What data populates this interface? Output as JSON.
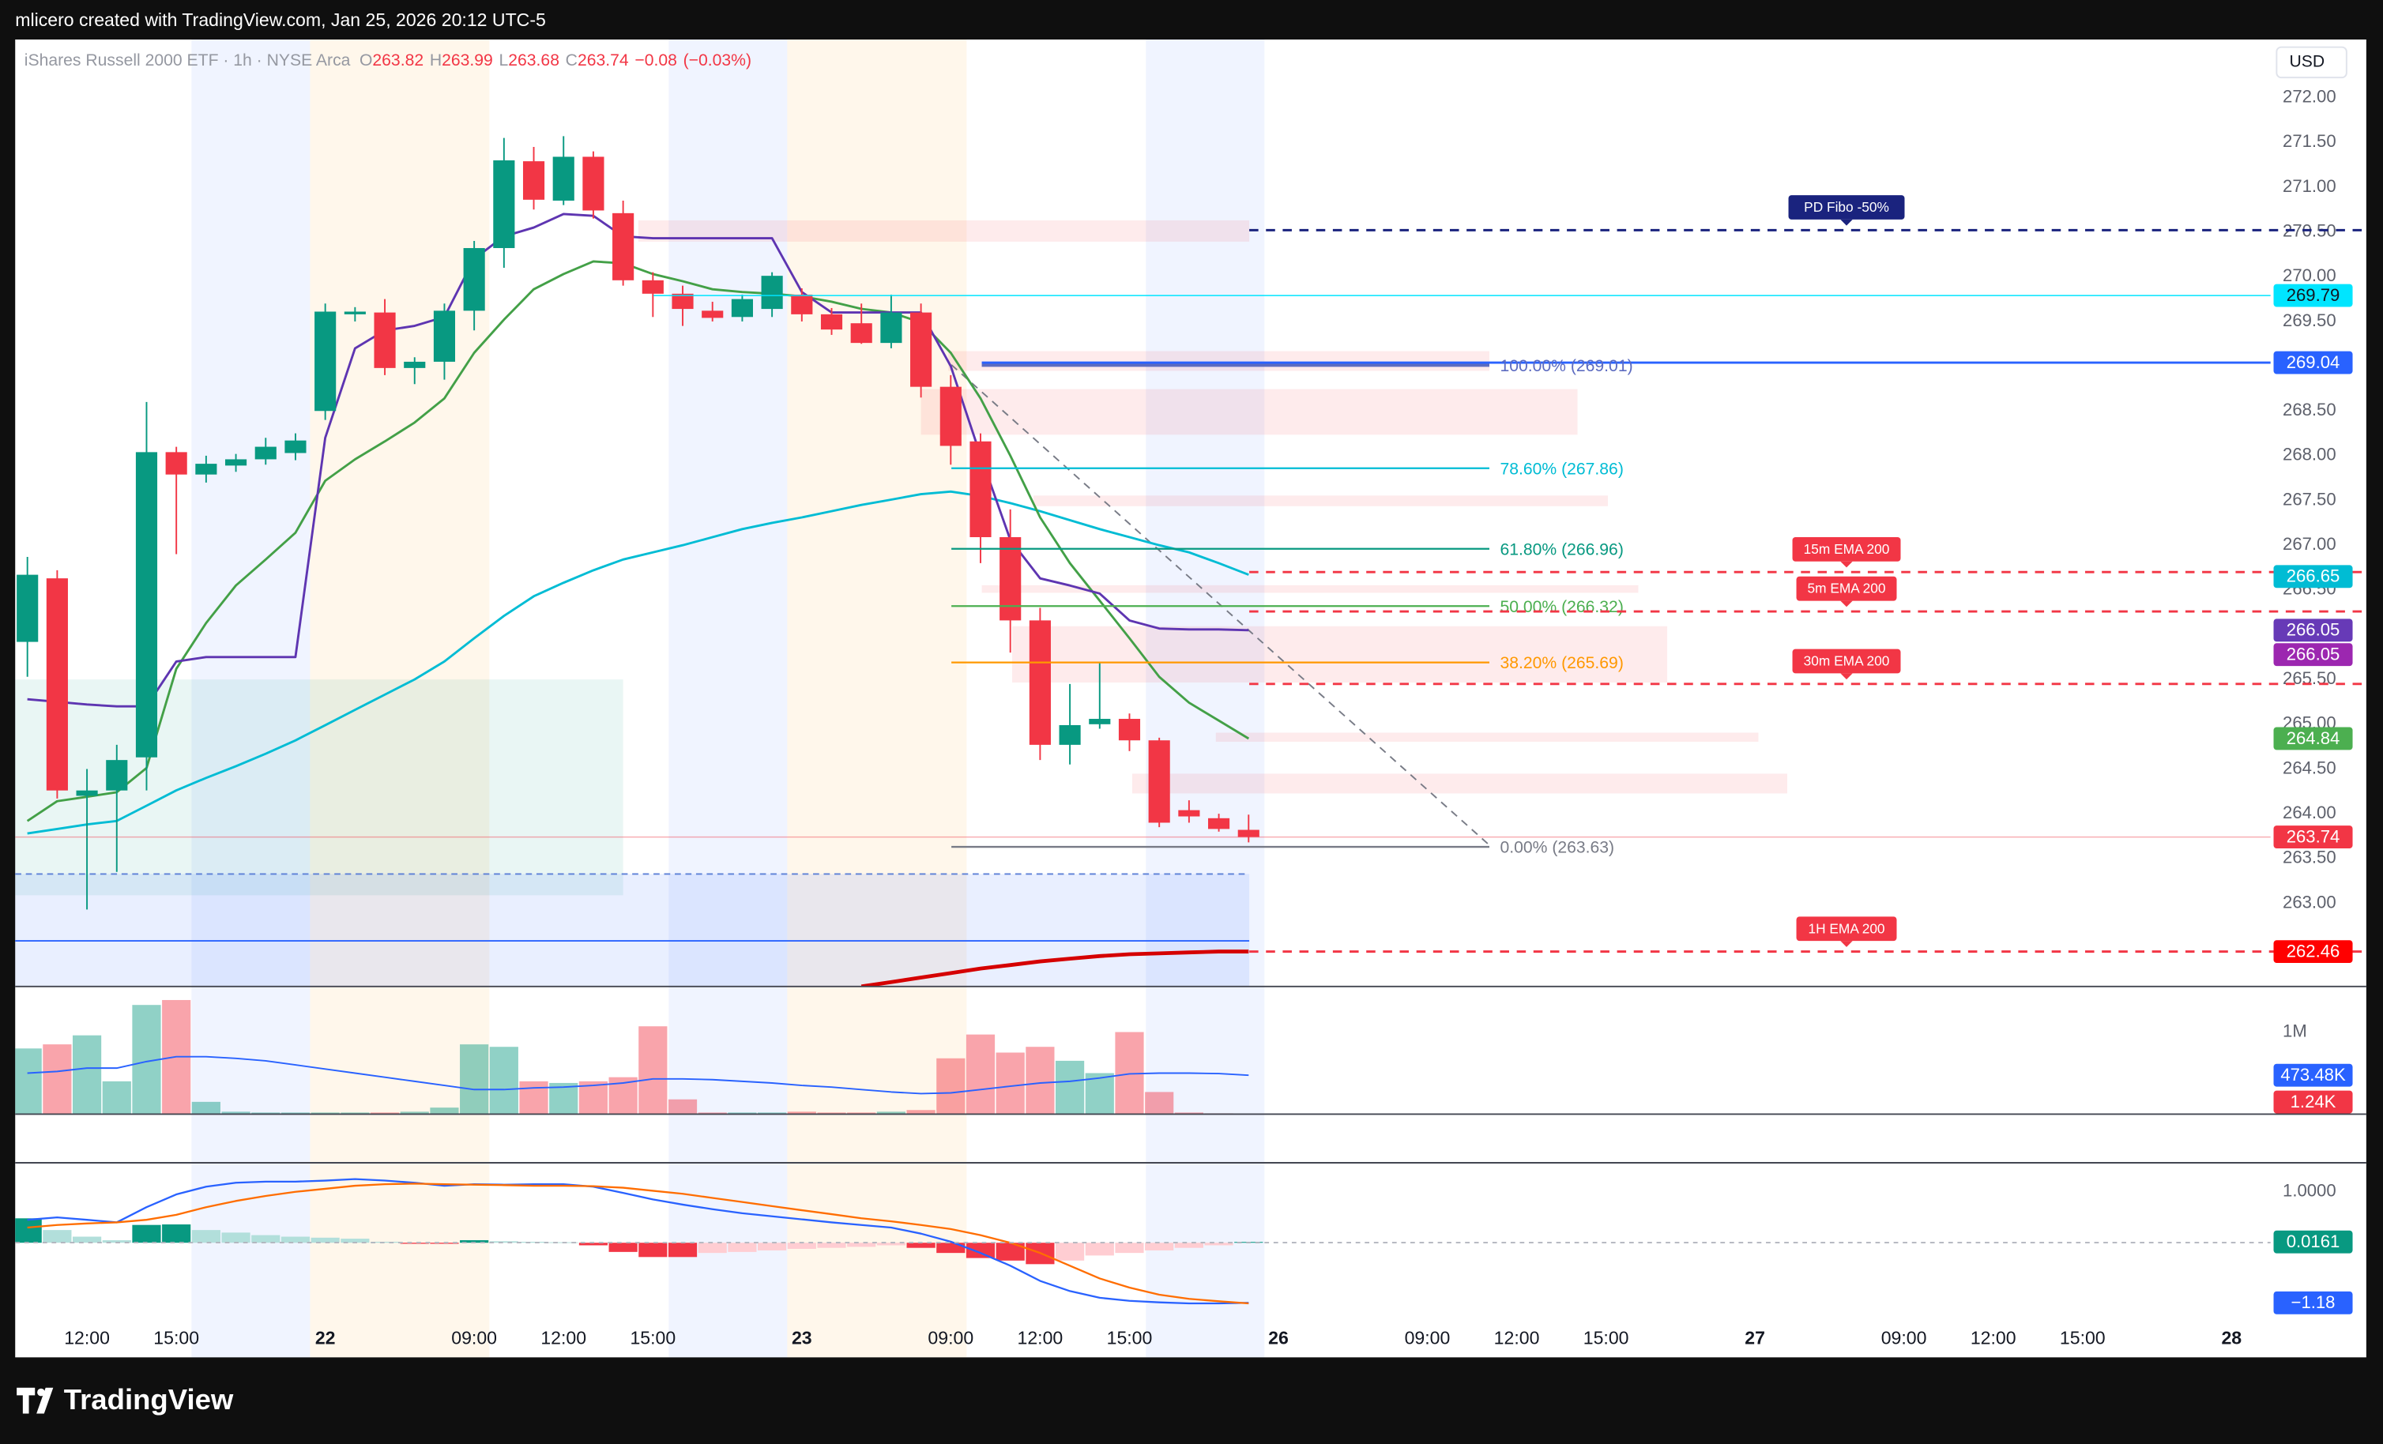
{
  "header": {
    "credit": "mlicero created with TradingView.com, Jan 25, 2026 20:12 UTC-5",
    "logo": "TradingView"
  },
  "chart_data": [
    {
      "type": "candlestick",
      "title": "iShares Russell 2000 ETF · 1h · NYSE Arca",
      "currency": "USD",
      "legend": [
        {
          "key": "O",
          "value": 263.82
        },
        {
          "key": "H",
          "value": 263.99
        },
        {
          "key": "L",
          "value": 263.68
        },
        {
          "key": "C",
          "value": 263.74
        }
      ],
      "change": {
        "value": -0.08,
        "label": "−0.08"
      },
      "change_pct": {
        "value": -0.03,
        "label": "(−0.03%)"
      },
      "xlim": [
        -0.41,
        75.31
      ],
      "xticks": [
        {
          "value": 2,
          "label": "12:00"
        },
        {
          "value": 5,
          "label": "15:00"
        },
        {
          "value": 10,
          "label": "22"
        },
        {
          "value": 15,
          "label": "09:00"
        },
        {
          "value": 18,
          "label": "12:00"
        },
        {
          "value": 21,
          "label": "15:00"
        },
        {
          "value": 26,
          "label": "23"
        },
        {
          "value": 31,
          "label": "09:00"
        },
        {
          "value": 34,
          "label": "12:00"
        },
        {
          "value": 37,
          "label": "15:00"
        },
        {
          "value": 42,
          "label": "26"
        },
        {
          "value": 47,
          "label": "09:00"
        },
        {
          "value": 50,
          "label": "12:00"
        },
        {
          "value": 53,
          "label": "15:00"
        },
        {
          "value": 58,
          "label": "27"
        },
        {
          "value": 63,
          "label": "09:00"
        },
        {
          "value": 66,
          "label": "12:00"
        },
        {
          "value": 69,
          "label": "15:00"
        },
        {
          "value": 74,
          "label": "28"
        }
      ],
      "ylim": [
        262.07,
        272.65
      ],
      "yticks": [
        {
          "value": 263,
          "label": "263.00"
        },
        {
          "value": 263.5,
          "label": "263.50"
        },
        {
          "value": 264,
          "label": "264.00"
        },
        {
          "value": 264.5,
          "label": "264.50"
        },
        {
          "value": 265,
          "label": "265.00"
        },
        {
          "value": 265.5,
          "label": "265.50"
        },
        {
          "value": 266,
          "label": "266.00"
        },
        {
          "value": 266.5,
          "label": "266.50"
        },
        {
          "value": 267,
          "label": "267.00"
        },
        {
          "value": 267.5,
          "label": "267.50"
        },
        {
          "value": 268,
          "label": "268.00"
        },
        {
          "value": 268.5,
          "label": "268.50"
        },
        {
          "value": 269,
          "label": "269.00"
        },
        {
          "value": 269.5,
          "label": "269.50"
        },
        {
          "value": 270,
          "label": "270.00"
        },
        {
          "value": 270.5,
          "label": "270.50"
        },
        {
          "value": 271,
          "label": "271.00"
        },
        {
          "value": 271.5,
          "label": "271.50"
        },
        {
          "value": 272,
          "label": "272.00"
        }
      ],
      "open": [
        265.92,
        266.63,
        264.2,
        264.26,
        264.63,
        268.04,
        267.79,
        267.89,
        267.96,
        268.03,
        268.5,
        269.58,
        269.6,
        268.98,
        269.05,
        269.62,
        270.32,
        271.29,
        270.85,
        271.34,
        270.71,
        269.96,
        269.81,
        269.62,
        269.55,
        269.64,
        269.8,
        269.58,
        269.48,
        269.26,
        269.6,
        268.77,
        268.16,
        267.09,
        266.16,
        264.77,
        265.0,
        265.06,
        264.82,
        264.04,
        263.95,
        263.82
      ],
      "high": [
        266.87,
        266.72,
        264.5,
        264.77,
        268.6,
        268.1,
        268.0,
        268.02,
        268.2,
        268.25,
        269.7,
        269.66,
        269.75,
        269.1,
        269.7,
        270.4,
        271.55,
        271.45,
        271.57,
        271.4,
        270.85,
        270.05,
        269.9,
        269.72,
        269.8,
        270.05,
        269.87,
        269.65,
        269.7,
        269.8,
        269.7,
        268.9,
        268.25,
        267.4,
        266.3,
        265.45,
        265.7,
        265.12,
        264.85,
        264.15,
        264.0,
        263.99
      ],
      "low": [
        265.53,
        264.17,
        262.93,
        263.35,
        264.26,
        266.9,
        267.7,
        267.82,
        267.9,
        267.95,
        268.4,
        269.5,
        268.9,
        268.8,
        268.85,
        269.4,
        270.1,
        270.75,
        270.8,
        270.65,
        269.9,
        269.55,
        269.45,
        269.5,
        269.5,
        269.55,
        269.5,
        269.35,
        269.25,
        269.2,
        268.65,
        267.9,
        266.8,
        265.8,
        264.6,
        264.55,
        264.95,
        264.7,
        263.85,
        263.9,
        263.8,
        263.68
      ],
      "close": [
        266.67,
        264.26,
        264.26,
        264.6,
        268.04,
        267.79,
        267.91,
        267.96,
        268.1,
        268.17,
        269.61,
        269.61,
        268.98,
        269.05,
        269.62,
        270.32,
        271.3,
        270.86,
        271.34,
        270.74,
        269.96,
        269.81,
        269.64,
        269.54,
        269.75,
        270.01,
        269.58,
        269.41,
        269.26,
        269.6,
        268.77,
        268.11,
        267.09,
        266.16,
        264.77,
        264.99,
        265.06,
        264.82,
        263.9,
        263.97,
        263.83,
        263.74
      ],
      "lines": [
        {
          "color": "#00bcd4",
          "values": [
            263.78,
            263.83,
            263.88,
            263.92,
            264.09,
            264.26,
            264.4,
            264.53,
            264.67,
            264.82,
            264.99,
            265.16,
            265.33,
            265.5,
            265.7,
            265.96,
            266.21,
            266.43,
            266.58,
            266.72,
            266.84,
            266.92,
            267.0,
            267.09,
            267.18,
            267.25,
            267.31,
            267.38,
            267.45,
            267.51,
            267.57,
            267.6,
            267.55,
            267.47,
            267.38,
            267.28,
            267.18,
            267.09,
            267.0,
            266.92,
            266.8,
            266.67
          ]
        },
        {
          "color": "#43a047",
          "values": [
            263.92,
            264.14,
            264.19,
            264.24,
            264.51,
            265.62,
            266.13,
            266.55,
            266.84,
            267.14,
            267.72,
            267.96,
            268.16,
            268.37,
            268.64,
            269.15,
            269.52,
            269.86,
            270.03,
            270.17,
            270.15,
            270.03,
            269.95,
            269.86,
            269.83,
            269.81,
            269.78,
            269.72,
            269.64,
            269.6,
            269.49,
            269.15,
            268.64,
            268.0,
            267.31,
            266.8,
            266.38,
            265.96,
            265.53,
            265.24,
            265.04,
            264.84
          ]
        },
        {
          "color": "#5e35b1",
          "values": [
            265.28,
            265.25,
            265.22,
            265.2,
            265.2,
            265.7,
            265.75,
            265.75,
            265.75,
            265.75,
            268.2,
            269.2,
            269.4,
            269.45,
            269.55,
            270.2,
            270.45,
            270.55,
            270.7,
            270.68,
            270.45,
            270.43,
            270.43,
            270.43,
            270.43,
            270.43,
            269.83,
            269.6,
            269.6,
            269.6,
            269.6,
            269.0,
            268.0,
            267.06,
            266.63,
            266.55,
            266.46,
            266.16,
            266.07,
            266.06,
            266.06,
            266.05
          ]
        },
        {
          "color": "#d50000",
          "values": [
            null,
            null,
            null,
            null,
            null,
            null,
            null,
            null,
            null,
            null,
            null,
            null,
            null,
            null,
            null,
            null,
            null,
            null,
            null,
            null,
            null,
            null,
            null,
            null,
            null,
            null,
            null,
            null,
            262.07,
            262.12,
            262.17,
            262.22,
            262.27,
            262.31,
            262.35,
            262.38,
            262.41,
            262.43,
            262.44,
            262.45,
            262.46,
            262.46
          ]
        }
      ],
      "fib": [
        {
          "label": "100.00% (269.01)",
          "value": 269.01,
          "color": "#5c6bc0"
        },
        {
          "label": "78.60% (267.86)",
          "value": 267.86,
          "color": "#00bcd4"
        },
        {
          "label": "61.80% (266.96)",
          "value": 266.96,
          "color": "#089981"
        },
        {
          "label": "50.00% (266.32)",
          "value": 266.32,
          "color": "#4caf50"
        },
        {
          "label": "38.20% (265.69)",
          "value": 265.69,
          "color": "#ff9800"
        },
        {
          "label": "0.00% (263.63)",
          "value": 263.63,
          "color": "#787b86"
        }
      ],
      "levels": [
        {
          "label": "PD Fibo -50%",
          "value": 270.52,
          "color": "#1a237e"
        },
        {
          "label": "15m EMA 200",
          "value": 266.7,
          "color": "#f23645"
        },
        {
          "label": "5m EMA 200",
          "value": 266.26,
          "color": "#f23645"
        },
        {
          "label": "30m EMA 200",
          "value": 265.45,
          "color": "#f23645"
        },
        {
          "label": "1H EMA 200",
          "value": 262.46,
          "color": "#f23645"
        }
      ],
      "markers": [
        {
          "value": 269.79,
          "color": "#00e5ff",
          "line": true
        },
        {
          "value": 269.04,
          "color": "#2962ff",
          "line": true
        },
        {
          "value": 266.65,
          "color": "#00bcd4"
        },
        {
          "value": 266.05,
          "color": "#673ab7"
        },
        {
          "value": 266.05,
          "color": "#9c27b0"
        },
        {
          "value": 264.84,
          "color": "#4caf50"
        },
        {
          "value": 263.74,
          "color": "#f23645",
          "line": true
        },
        {
          "value": 262.46,
          "color": "#ff0000"
        }
      ]
    },
    {
      "type": "bar",
      "ylim": [
        0,
        1555000
      ],
      "yticks": [
        {
          "value": 1000000,
          "label": "1M"
        }
      ],
      "values": [
        800000,
        850000,
        960000,
        400000,
        1330000,
        1390000,
        150000,
        30000,
        20000,
        20000,
        20000,
        20000,
        20000,
        30000,
        80000,
        850000,
        820000,
        400000,
        380000,
        400000,
        450000,
        1070000,
        180000,
        20000,
        20000,
        20000,
        30000,
        20000,
        20000,
        30000,
        50000,
        680000,
        970000,
        750000,
        820000,
        650000,
        500000,
        1000000,
        270000,
        20000,
        10000,
        1240
      ],
      "line": {
        "color": "#2962ff",
        "values": [
          500000,
          520000,
          560000,
          560000,
          640000,
          700000,
          700000,
          680000,
          650000,
          600000,
          550000,
          500000,
          450000,
          400000,
          350000,
          300000,
          300000,
          320000,
          330000,
          350000,
          380000,
          430000,
          430000,
          420000,
          400000,
          380000,
          350000,
          330000,
          300000,
          270000,
          250000,
          260000,
          300000,
          340000,
          380000,
          400000,
          440000,
          490000,
          500000,
          500000,
          495000,
          473480
        ]
      },
      "markers": [
        {
          "value": 473480,
          "label": "473.48K",
          "color": "#2962ff"
        },
        {
          "value": 1240,
          "label": "1.24K",
          "color": "#f23645"
        }
      ]
    },
    {
      "type": "macd",
      "ylim": [
        -2.25,
        1.57
      ],
      "yticks": [
        {
          "value": 1,
          "label": "1.0000"
        }
      ],
      "histogram": [
        0.48,
        0.25,
        0.12,
        0.05,
        0.35,
        0.36,
        0.25,
        0.2,
        0.15,
        0.12,
        0.1,
        0.08,
        0.02,
        -0.02,
        -0.02,
        0.05,
        0.03,
        0.02,
        0.01,
        -0.05,
        -0.18,
        -0.28,
        -0.28,
        -0.2,
        -0.18,
        -0.15,
        -0.12,
        -0.1,
        -0.08,
        -0.05,
        -0.1,
        -0.2,
        -0.3,
        -0.35,
        -0.42,
        -0.35,
        -0.25,
        -0.2,
        -0.15,
        -0.1,
        -0.05,
        0.0161
      ],
      "lines": [
        {
          "color": "#2962ff",
          "values": [
            0.45,
            0.5,
            0.45,
            0.4,
            0.7,
            0.95,
            1.1,
            1.18,
            1.2,
            1.2,
            1.22,
            1.25,
            1.22,
            1.18,
            1.12,
            1.15,
            1.14,
            1.15,
            1.15,
            1.1,
            0.98,
            0.85,
            0.75,
            0.66,
            0.58,
            0.52,
            0.46,
            0.4,
            0.35,
            0.3,
            0.18,
            0.02,
            -0.2,
            -0.45,
            -0.75,
            -0.95,
            -1.08,
            -1.14,
            -1.17,
            -1.19,
            -1.19,
            -1.18
          ]
        },
        {
          "color": "#ff6d00",
          "values": [
            0.3,
            0.35,
            0.38,
            0.4,
            0.45,
            0.55,
            0.7,
            0.82,
            0.92,
            1.0,
            1.06,
            1.12,
            1.15,
            1.16,
            1.15,
            1.14,
            1.13,
            1.12,
            1.12,
            1.11,
            1.08,
            1.02,
            0.96,
            0.88,
            0.8,
            0.72,
            0.64,
            0.56,
            0.48,
            0.42,
            0.35,
            0.27,
            0.15,
            0.0,
            -0.2,
            -0.45,
            -0.7,
            -0.88,
            -1.02,
            -1.1,
            -1.15,
            -1.19
          ]
        }
      ],
      "markers": [
        {
          "value": 0.0161,
          "color": "#089981"
        },
        {
          "value": -1.18,
          "label": "−1.18",
          "color": "#2962ff"
        }
      ]
    }
  ]
}
